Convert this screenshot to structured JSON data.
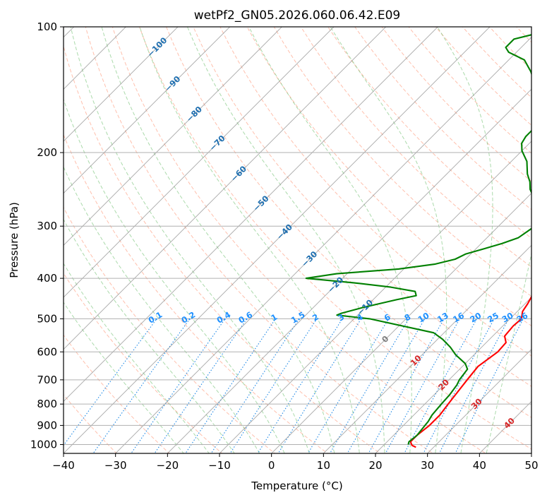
{
  "chart_data": {
    "type": "line",
    "title": "wetPf2_GN05.2026.060.06.42.E09",
    "xlabel": "Temperature (°C)",
    "ylabel": "Pressure (hPa)",
    "xlim": [
      -40,
      50
    ],
    "ylim": [
      1050,
      100
    ],
    "x_ticks": [
      "−40",
      "−30",
      "−20",
      "−10",
      "0",
      "10",
      "20",
      "30",
      "40",
      "50"
    ],
    "y_ticks": [
      "100",
      "200",
      "300",
      "400",
      "500",
      "600",
      "700",
      "800",
      "900",
      "1000"
    ],
    "y_tick_values": [
      100,
      200,
      300,
      400,
      500,
      600,
      700,
      800,
      900,
      1000
    ],
    "series": [
      {
        "name": "Temperature",
        "color": "#ff0000",
        "points": [
          [
            26.6,
            1015
          ],
          [
            25.5,
            1005
          ],
          [
            24.5,
            985
          ],
          [
            24.5,
            950
          ],
          [
            25.0,
            900
          ],
          [
            25.0,
            850
          ],
          [
            24.5,
            800
          ],
          [
            24.0,
            750
          ],
          [
            23.5,
            700
          ],
          [
            23.0,
            650
          ],
          [
            24.0,
            600
          ],
          [
            23.8,
            570
          ],
          [
            22.3,
            550
          ],
          [
            22.0,
            520
          ],
          [
            22.2,
            500
          ],
          [
            21.0,
            480
          ],
          [
            20.5,
            460
          ],
          [
            19.8,
            440
          ],
          [
            19.3,
            420
          ],
          [
            18.0,
            400
          ],
          [
            16.8,
            380
          ],
          [
            15.7,
            360
          ],
          [
            14.0,
            350
          ],
          [
            12.0,
            340
          ],
          [
            10.0,
            330
          ],
          [
            8.0,
            310
          ],
          [
            7.1,
            300
          ],
          [
            5.5,
            280
          ],
          [
            3.2,
            260
          ],
          [
            1.0,
            240
          ],
          [
            -1.5,
            220
          ],
          [
            -4.0,
            200
          ],
          [
            -6.5,
            180
          ],
          [
            -9.5,
            160
          ],
          [
            -12.0,
            150
          ],
          [
            -15.0,
            140
          ],
          [
            -18.0,
            130
          ],
          [
            -19.5,
            125
          ],
          [
            -20.0,
            120
          ],
          [
            -18.5,
            115
          ],
          [
            -16.5,
            110
          ],
          [
            -14.5,
            105
          ],
          [
            -14.0,
            102
          ],
          [
            -14.5,
            100
          ]
        ]
      },
      {
        "name": "Dewpoint",
        "color": "#008000",
        "points": [
          [
            24.6,
            1000
          ],
          [
            24.2,
            985
          ],
          [
            24.5,
            950
          ],
          [
            24.3,
            920
          ],
          [
            24.0,
            880
          ],
          [
            23.5,
            850
          ],
          [
            23.2,
            800
          ],
          [
            23.0,
            760
          ],
          [
            22.5,
            720
          ],
          [
            22.0,
            700
          ],
          [
            21.5,
            660
          ],
          [
            20.0,
            640
          ],
          [
            16.5,
            610
          ],
          [
            14.0,
            585
          ],
          [
            11.0,
            560
          ],
          [
            8.0,
            540
          ],
          [
            -7.0,
            500
          ],
          [
            -14.0,
            490
          ],
          [
            -13.5,
            485
          ],
          [
            -10.5,
            470
          ],
          [
            -5.5,
            450
          ],
          [
            -2.5,
            440
          ],
          [
            -3.5,
            430
          ],
          [
            -9.0,
            420
          ],
          [
            -17.0,
            410
          ],
          [
            -27.0,
            400
          ],
          [
            -22.0,
            390
          ],
          [
            -11.0,
            380
          ],
          [
            -5.0,
            370
          ],
          [
            -2.0,
            360
          ],
          [
            -1.0,
            350
          ],
          [
            1.5,
            340
          ],
          [
            4.0,
            330
          ],
          [
            6.0,
            320
          ],
          [
            7.0,
            300
          ],
          [
            5.0,
            280
          ],
          [
            2.0,
            260
          ],
          [
            -1.0,
            245
          ],
          [
            -2.5,
            235
          ],
          [
            -4.5,
            225
          ],
          [
            -7.0,
            210
          ],
          [
            -10.0,
            198
          ],
          [
            -11.5,
            190
          ],
          [
            -12.0,
            183
          ],
          [
            -12.0,
            175
          ],
          [
            -14.5,
            160
          ],
          [
            -17.5,
            147
          ],
          [
            -21.0,
            135
          ],
          [
            -23.5,
            128
          ],
          [
            -27.0,
            120
          ],
          [
            -31.5,
            115
          ],
          [
            -33.0,
            112
          ],
          [
            -33.0,
            107
          ],
          [
            -30.0,
            104
          ],
          [
            -26.5,
            101
          ],
          [
            -25.0,
            100
          ]
        ]
      }
    ],
    "isotherm_labels": [
      "−100",
      "−90",
      "−80",
      "−70",
      "−60",
      "−50",
      "−40",
      "−30",
      "−20",
      "−10",
      "0",
      "10",
      "20",
      "30",
      "40"
    ],
    "isotherm_values": [
      -100,
      -90,
      -80,
      -70,
      -60,
      -50,
      -40,
      -30,
      -20,
      -10,
      0,
      10,
      20,
      30,
      40
    ],
    "mixing_ratio_labels": [
      "0.1",
      "0.2",
      "0.4",
      "0.6",
      "1",
      "1.5",
      "2",
      "3",
      "4",
      "6",
      "8",
      "10",
      "13",
      "16",
      "20",
      "25",
      "30",
      "36"
    ],
    "mixing_ratio_values": [
      0.1,
      0.2,
      0.4,
      0.6,
      1,
      1.5,
      2,
      3,
      4,
      6,
      8,
      10,
      13,
      16,
      20,
      25,
      30,
      36
    ],
    "colors": {
      "grid": "#b0b0b0",
      "isotherm": "#8c8c8c",
      "dry_adiabat": "#ff8c69",
      "moist_adiabat": "#66bb66",
      "mixing_ratio": "#1e88e5",
      "isotherm_label_cold": "#1f6fb0",
      "isotherm_label_warm": "#d62728",
      "isotherm_label_zero": "#808080",
      "mixing_label": "#1e90ff"
    }
  }
}
